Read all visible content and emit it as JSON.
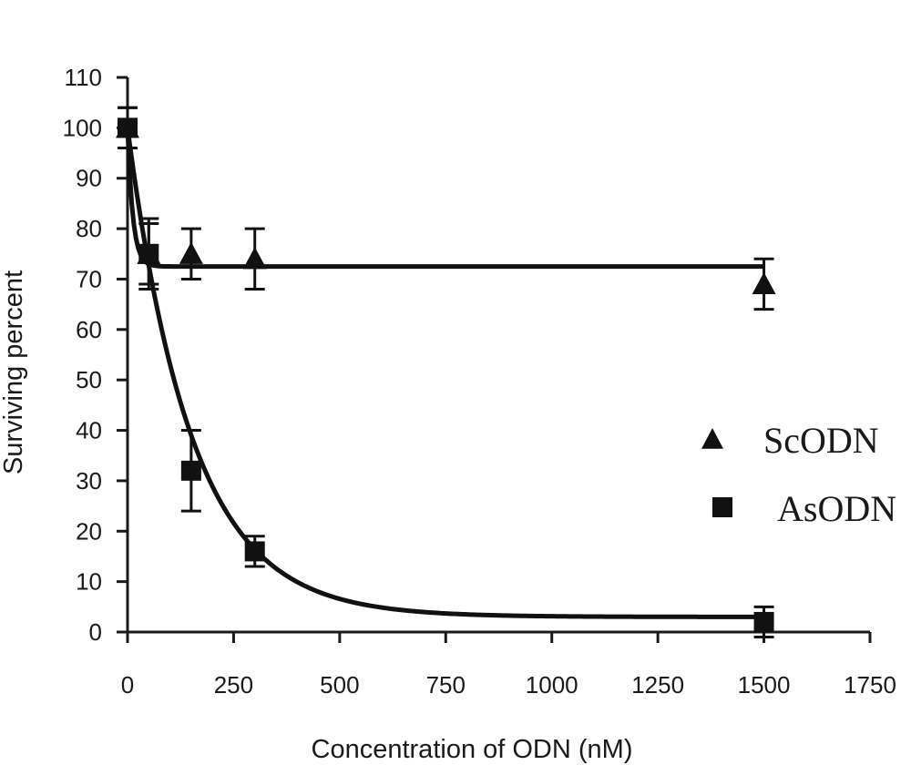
{
  "chart_data": {
    "type": "scatter",
    "title": "",
    "xlabel": "Concentration of ODN (nM)",
    "ylabel": "Surviving percent",
    "xlim": [
      0,
      1750
    ],
    "ylim": [
      0,
      110
    ],
    "x_ticks": [
      0,
      250,
      500,
      750,
      1000,
      1250,
      1500,
      1750
    ],
    "y_ticks": [
      0,
      10,
      20,
      30,
      40,
      50,
      60,
      70,
      80,
      90,
      100,
      110
    ],
    "grid": false,
    "legend": "right",
    "series": [
      {
        "name": "ScODN",
        "marker": "triangle",
        "color": "#111111",
        "x": [
          0,
          50,
          150,
          300,
          1500
        ],
        "y": [
          100,
          75,
          75,
          74,
          69
        ],
        "err": [
          4,
          7,
          5,
          6,
          5
        ],
        "fit": {
          "model": "exp_decay",
          "plateau": 72.5,
          "span": 27.5,
          "k": 0.08
        }
      },
      {
        "name": "AsODN",
        "marker": "square",
        "color": "#111111",
        "x": [
          0,
          50,
          150,
          300,
          1500
        ],
        "y": [
          100,
          75,
          32,
          16,
          2
        ],
        "err": [
          4,
          6,
          8,
          3,
          3
        ],
        "fit": {
          "model": "exp_decay",
          "plateau": 3,
          "span": 97,
          "k": 0.0066
        }
      }
    ]
  }
}
